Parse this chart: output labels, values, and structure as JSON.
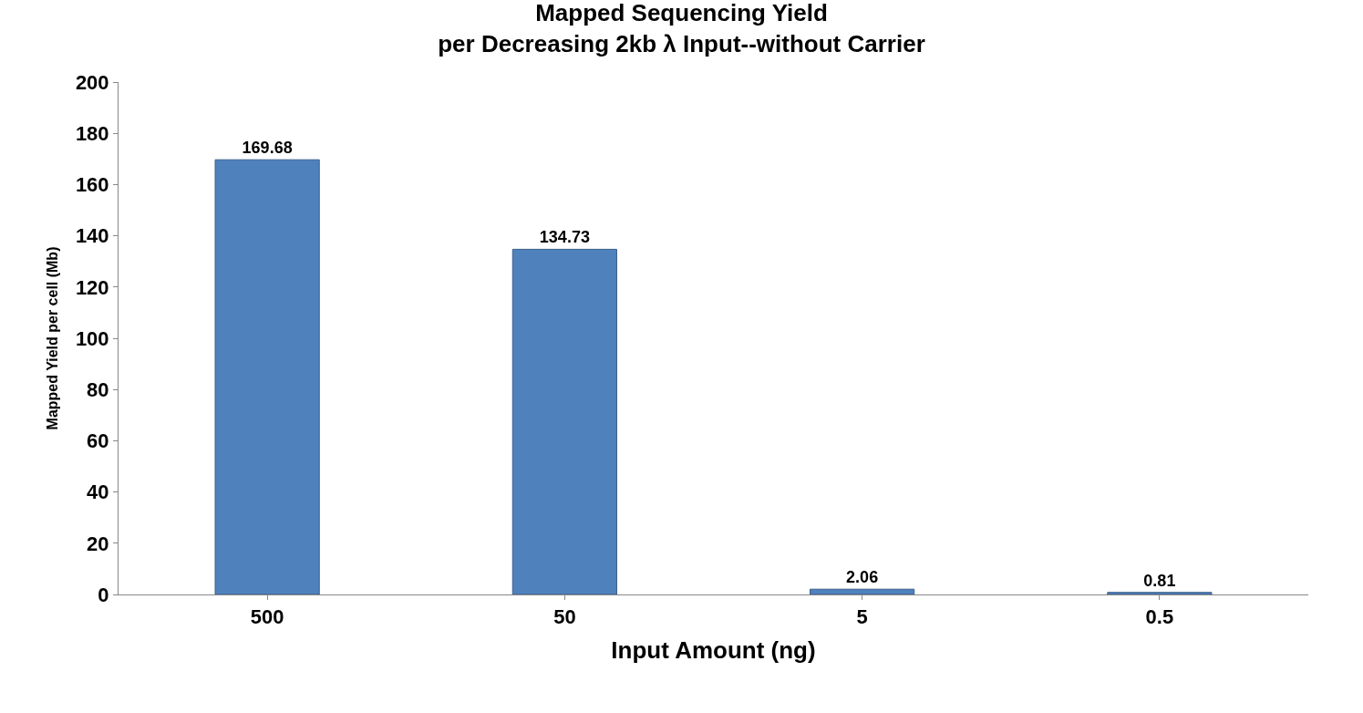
{
  "chart_data": {
    "type": "bar",
    "title": "Mapped Sequencing Yield\nper Decreasing 2kb λ Input--without Carrier",
    "xlabel": "Input Amount (ng)",
    "ylabel": "Mapped Yield per cell (Mb)",
    "categories": [
      "500",
      "50",
      "5",
      "0.5"
    ],
    "values": [
      169.68,
      134.73,
      2.06,
      0.81
    ],
    "color": "#4f81bd",
    "ylim": [
      0,
      200
    ],
    "yticks": [
      0,
      20,
      40,
      60,
      80,
      100,
      120,
      140,
      160,
      180,
      200
    ],
    "data_labels": true
  }
}
